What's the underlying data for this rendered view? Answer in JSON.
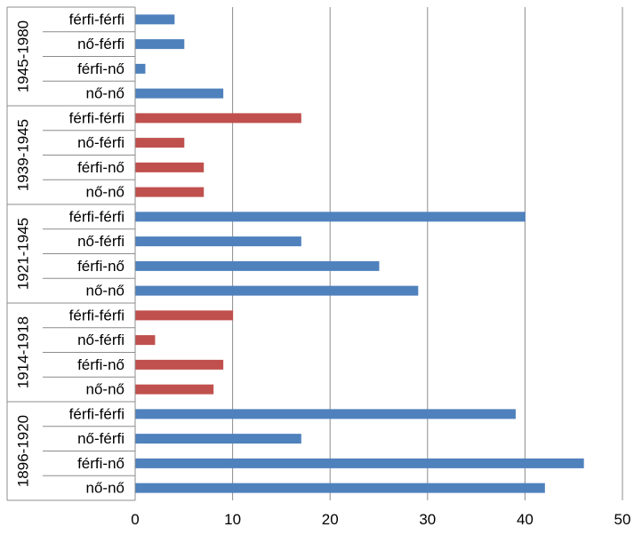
{
  "chart_data": {
    "type": "bar",
    "orientation": "horizontal",
    "xlim": [
      0,
      50
    ],
    "x_ticks": [
      "0",
      "10",
      "20",
      "30",
      "40",
      "50"
    ],
    "grid": "vertical",
    "colors": {
      "blue": "#4f81bd",
      "red": "#c0504d"
    },
    "groups": [
      {
        "label": "1945-1980",
        "color": "#4f81bd",
        "bars": [
          {
            "category": "férfi-férfi",
            "value": 4
          },
          {
            "category": "nő-férfi",
            "value": 5
          },
          {
            "category": "férfi-nő",
            "value": 1
          },
          {
            "category": "nő-nő",
            "value": 9
          }
        ]
      },
      {
        "label": "1939-1945",
        "color": "#c0504d",
        "bars": [
          {
            "category": "férfi-férfi",
            "value": 17
          },
          {
            "category": "nő-férfi",
            "value": 5
          },
          {
            "category": "férfi-nő",
            "value": 7
          },
          {
            "category": "nő-nő",
            "value": 7
          }
        ]
      },
      {
        "label": "1921-1945",
        "color": "#4f81bd",
        "bars": [
          {
            "category": "férfi-férfi",
            "value": 40
          },
          {
            "category": "nő-férfi",
            "value": 17
          },
          {
            "category": "férfi-nő",
            "value": 25
          },
          {
            "category": "nő-nő",
            "value": 29
          }
        ]
      },
      {
        "label": "1914-1918",
        "color": "#c0504d",
        "bars": [
          {
            "category": "férfi-férfi",
            "value": 10
          },
          {
            "category": "nő-férfi",
            "value": 2
          },
          {
            "category": "férfi-nő",
            "value": 9
          },
          {
            "category": "nő-nő",
            "value": 8
          }
        ]
      },
      {
        "label": "1896-1920",
        "color": "#4f81bd",
        "bars": [
          {
            "category": "férfi-férfi",
            "value": 39
          },
          {
            "category": "nő-férfi",
            "value": 17
          },
          {
            "category": "férfi-nő",
            "value": 46
          },
          {
            "category": "nő-nő",
            "value": 42
          }
        ]
      }
    ]
  }
}
